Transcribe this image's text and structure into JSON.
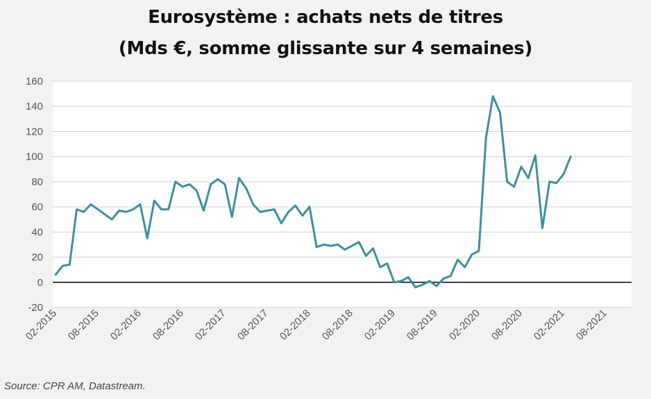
{
  "chart_title_line1": "Eurosystème : achats nets de titres",
  "chart_title_line2": "(Mds €, somme glissante sur 4 semaines)",
  "source": "Source: CPR AM, Datastream.",
  "colors": {
    "line": "#3b8fa0",
    "grid": "#d0d0d0",
    "zero": "#000000",
    "plot_bg": "#ffffff"
  },
  "chart_data": {
    "type": "line",
    "title": "Eurosystème : achats nets de titres (Mds €, somme glissante sur 4 semaines)",
    "xlabel": "",
    "ylabel": "",
    "ylim": [
      -20,
      160
    ],
    "yticks": [
      -20,
      0,
      20,
      40,
      60,
      80,
      100,
      120,
      140,
      160
    ],
    "xticks": [
      "02-2015",
      "08-2015",
      "02-2016",
      "08-2016",
      "02-2017",
      "08-2017",
      "02-2018",
      "08-2018",
      "02-2019",
      "08-2019",
      "02-2020",
      "08-2020",
      "02-2021",
      "08-2021"
    ],
    "grid": true,
    "legend": "none",
    "series": [
      {
        "x": [
          "2015-02",
          "2015-03",
          "2015-04",
          "2015-05",
          "2015-06",
          "2015-07",
          "2015-08",
          "2015-09",
          "2015-10",
          "2015-11",
          "2015-12",
          "2016-01",
          "2016-02",
          "2016-03",
          "2016-04",
          "2016-05",
          "2016-06",
          "2016-07",
          "2016-08",
          "2016-09",
          "2016-10",
          "2016-11",
          "2016-12",
          "2017-01",
          "2017-02",
          "2017-03",
          "2017-04",
          "2017-05",
          "2017-06",
          "2017-07",
          "2017-08",
          "2017-09",
          "2017-10",
          "2017-11",
          "2017-12",
          "2018-01",
          "2018-02",
          "2018-03",
          "2018-04",
          "2018-05",
          "2018-06",
          "2018-07",
          "2018-08",
          "2018-09",
          "2018-10",
          "2018-11",
          "2018-12",
          "2019-01",
          "2019-02",
          "2019-03",
          "2019-04",
          "2019-05",
          "2019-06",
          "2019-07",
          "2019-08",
          "2019-09",
          "2019-10",
          "2019-11",
          "2019-12",
          "2020-01",
          "2020-02",
          "2020-03",
          "2020-04",
          "2020-05",
          "2020-06",
          "2020-07",
          "2020-08",
          "2020-09",
          "2020-10",
          "2020-11",
          "2020-12",
          "2021-01",
          "2021-02",
          "2021-03",
          "2021-04",
          "2021-05",
          "2021-06"
        ],
        "values": [
          6,
          13,
          14,
          58,
          56,
          62,
          58,
          54,
          50,
          57,
          56,
          58,
          62,
          35,
          65,
          58,
          58,
          80,
          76,
          78,
          73,
          57,
          78,
          82,
          78,
          52,
          83,
          75,
          62,
          56,
          57,
          58,
          47,
          56,
          61,
          53,
          60,
          28,
          30,
          29,
          30,
          26,
          29,
          32,
          21,
          27,
          12,
          15,
          0,
          1,
          4,
          -4,
          -2,
          1,
          -3,
          3,
          5,
          18,
          12,
          22,
          25,
          115,
          148,
          135,
          80,
          76,
          92,
          83,
          101,
          43,
          80,
          79,
          86,
          100,
          null,
          null,
          null
        ]
      }
    ]
  }
}
